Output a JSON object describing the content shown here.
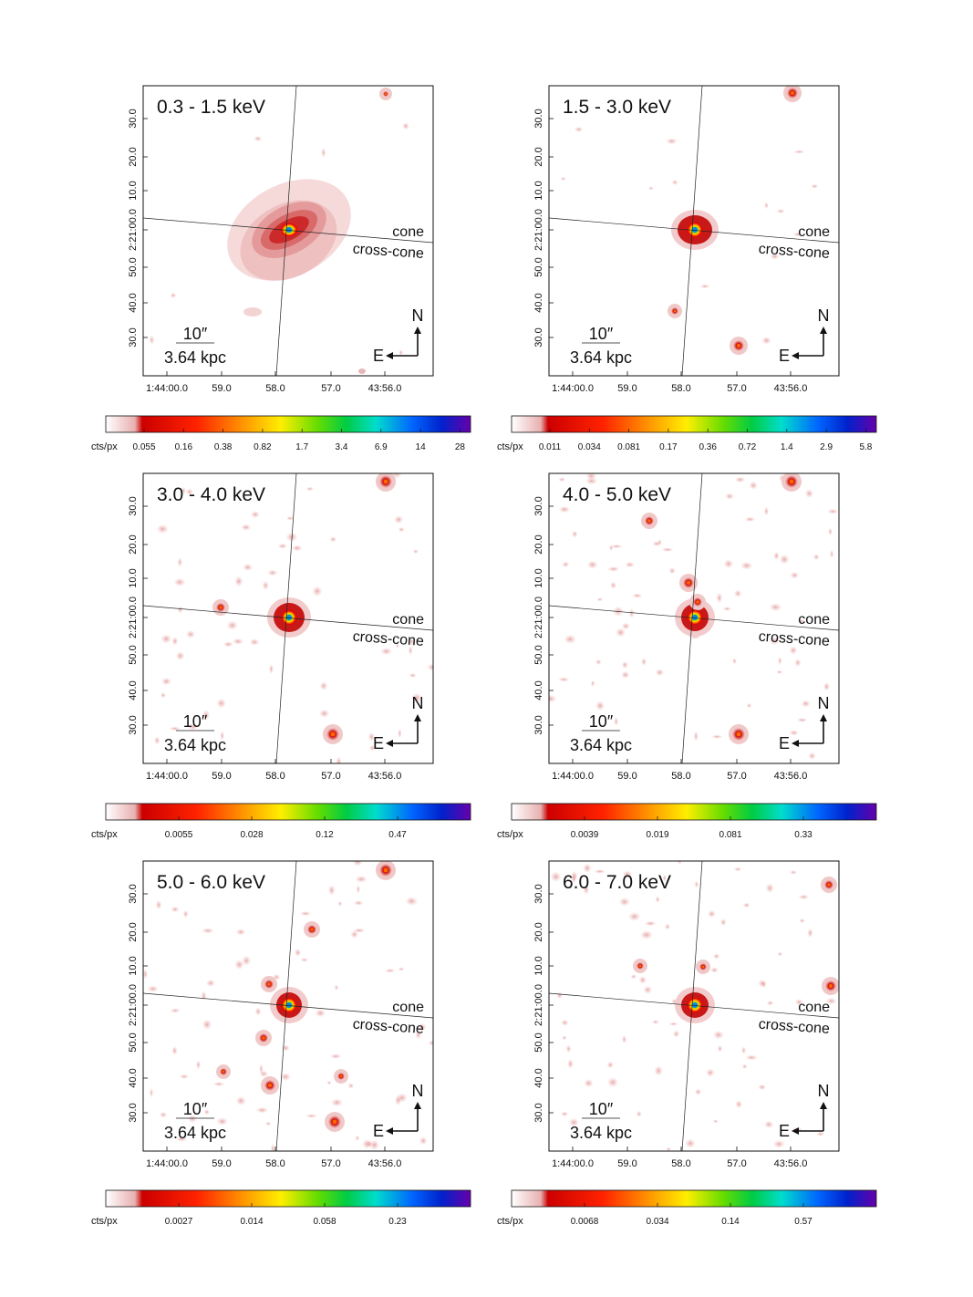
{
  "figure": {
    "compass": {
      "north": "N",
      "east": "E"
    },
    "scale_bar": {
      "angular": "10″",
      "physical": "3.64 kpc"
    },
    "axis_labels": {
      "cone": "cone",
      "cross_cone": "cross-cone"
    },
    "y_ticks": [
      "30.0",
      "20.0",
      "10.0",
      "2:21:00.0",
      "50.0",
      "40.0",
      "30.0"
    ],
    "x_ticks": [
      "1:44:00.0",
      "59.0",
      "58.0",
      "57.0",
      "43:56.0"
    ],
    "colorbar_unit": "cts/px",
    "colorbar_colors": [
      "#ffffff",
      "#ff0000",
      "#ff8800",
      "#ffee00",
      "#00dd00",
      "#00ddcc",
      "#0033ff",
      "#6600aa"
    ]
  },
  "panels": [
    {
      "band": "0.3 - 1.5 keV",
      "colorbar_ticks": [
        "0.055",
        "0.16",
        "0.38",
        "0.82",
        "1.7",
        "3.4",
        "6.9",
        "14",
        "28"
      ]
    },
    {
      "band": "1.5 - 3.0 keV",
      "colorbar_ticks": [
        "0.011",
        "0.034",
        "0.081",
        "0.17",
        "0.36",
        "0.72",
        "1.4",
        "2.9",
        "5.8"
      ]
    },
    {
      "band": "3.0 - 4.0 keV",
      "colorbar_ticks": [
        "0.0055",
        "0.028",
        "0.12",
        "0.47"
      ]
    },
    {
      "band": "4.0 - 5.0 keV",
      "colorbar_ticks": [
        "0.0039",
        "0.019",
        "0.081",
        "0.33"
      ]
    },
    {
      "band": "5.0 - 6.0 keV",
      "colorbar_ticks": [
        "0.0027",
        "0.014",
        "0.058",
        "0.23"
      ]
    },
    {
      "band": "6.0 - 7.0 keV",
      "colorbar_ticks": [
        "0.0068",
        "0.034",
        "0.14",
        "0.57"
      ]
    }
  ]
}
